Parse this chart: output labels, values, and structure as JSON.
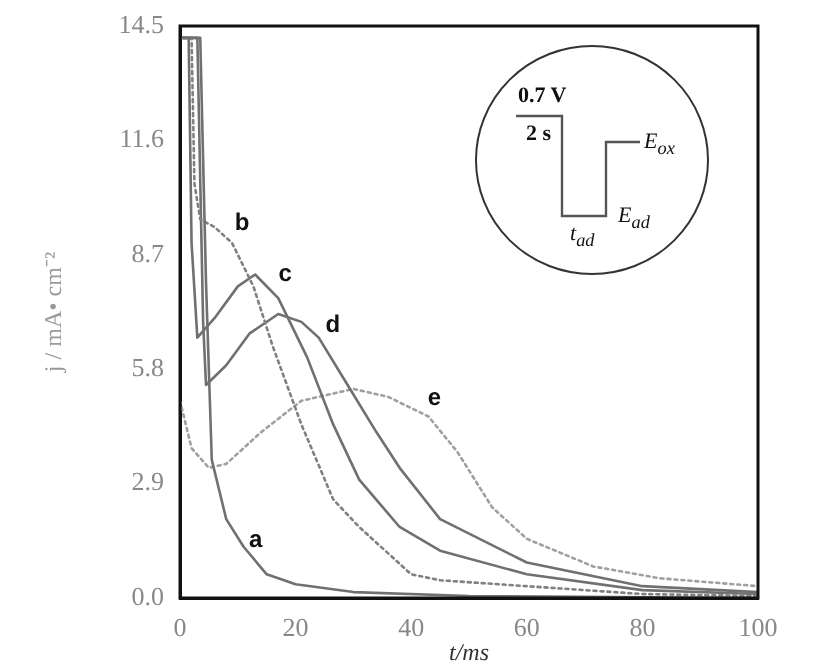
{
  "chart_data": {
    "type": "line",
    "xlabel": "t/ms",
    "ylabel": "j / mA• cm⁻²",
    "xlim": [
      0,
      100
    ],
    "xticks": [
      0,
      20,
      40,
      60,
      80,
      100
    ],
    "ylim": [
      0,
      14.5
    ],
    "yticks": [
      {
        "value": 0,
        "label": "0.0"
      },
      {
        "value": 2.9,
        "label": "2.9"
      },
      {
        "value": 5.8,
        "label": "5.8"
      },
      {
        "value": 8.7,
        "label": "8.7"
      },
      {
        "value": 11.6,
        "label": "11.6"
      },
      {
        "value": 14.5,
        "label": "14.5"
      }
    ],
    "grid": false,
    "legend": false,
    "marker": "none",
    "series": [
      {
        "name": "a",
        "color": "#707070",
        "line_style": "solid",
        "x": [
          0.5,
          3.5,
          4.5,
          5.5,
          8,
          11,
          15,
          20,
          30,
          50,
          100
        ],
        "values": [
          14.2,
          14.2,
          8,
          3.5,
          2.0,
          1.3,
          0.6,
          0.35,
          0.15,
          0.05,
          0
        ]
      },
      {
        "name": "b",
        "color": "#808080",
        "line_style": "dotted",
        "x": [
          0.5,
          2,
          2.5,
          3.5,
          6,
          9,
          12.7,
          16,
          21,
          26.5,
          31,
          40,
          45,
          60,
          80,
          100
        ],
        "values": [
          14.2,
          14.2,
          10.5,
          9.6,
          9.4,
          9.0,
          7.9,
          6.4,
          4.4,
          2.5,
          1.8,
          0.6,
          0.45,
          0.3,
          0.1,
          0.05
        ]
      },
      {
        "name": "c",
        "color": "#707070",
        "line_style": "solid",
        "x": [
          0.5,
          1.5,
          2,
          3,
          6,
          10,
          13,
          17,
          22,
          26.5,
          31,
          38,
          45,
          60,
          80,
          100
        ],
        "values": [
          14.2,
          14.2,
          9,
          6.6,
          7.1,
          7.9,
          8.2,
          7.6,
          6.1,
          4.4,
          3.0,
          1.8,
          1.2,
          0.6,
          0.2,
          0.1
        ]
      },
      {
        "name": "d",
        "color": "#707070",
        "line_style": "solid",
        "x": [
          0.5,
          3,
          4,
          4.5,
          8,
          12,
          17,
          21,
          24,
          29,
          34,
          38,
          45,
          60,
          80,
          100
        ],
        "values": [
          14.2,
          14.2,
          7,
          5.4,
          5.9,
          6.7,
          7.2,
          7.0,
          6.6,
          5.4,
          4.2,
          3.3,
          2.0,
          0.9,
          0.3,
          0.15
        ]
      },
      {
        "name": "e",
        "color": "#a0a0a0",
        "line_style": "dotted",
        "x": [
          0,
          2,
          5,
          8,
          14,
          21,
          30,
          36,
          43,
          48,
          54,
          60,
          71.5,
          83,
          100
        ],
        "values": [
          5.0,
          3.8,
          3.3,
          3.4,
          4.2,
          5.0,
          5.3,
          5.1,
          4.6,
          3.7,
          2.3,
          1.5,
          0.8,
          0.5,
          0.3
        ]
      }
    ],
    "annotations": [
      "0.7 V",
      "2 s",
      "E$_{ox}$",
      "E$_{ad}$",
      "t$_{ad}$"
    ]
  }
}
